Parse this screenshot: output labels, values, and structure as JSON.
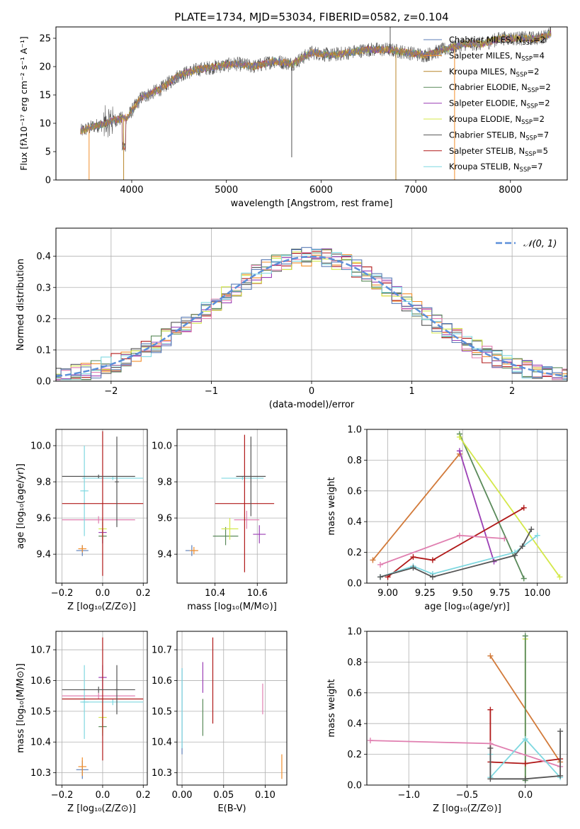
{
  "figure": {
    "title": "PLATE=1734, MJD=53034, FIBERID=0582, z=0.104"
  },
  "colors": {
    "chabrier_miles": "#5b7db7",
    "salpeter_miles": "#f28e2b",
    "kroupa_miles": "#b8852a",
    "chabrier_elodie": "#5a8a5a",
    "salpeter_elodie": "#9b3fb5",
    "kroupa_elodie": "#d4e84a",
    "chabrier_stelib": "#555555",
    "salpeter_stelib": "#b01818",
    "kroupa_stelib": "#7fd8e0",
    "pink": "#e07fb0",
    "orange_line": "#d27a3a",
    "normal_curve": "#5b8fd9",
    "grid": "#b0b0b0"
  },
  "chart_data": [
    {
      "id": "spectrum",
      "type": "line",
      "title": "PLATE=1734, MJD=53034, FIBERID=0582, z=0.104",
      "xlabel": "wavelength [Angstrom, rest frame]",
      "ylabel": "Flux [fλ10⁻¹⁷ erg cm⁻² s⁻¹ A⁻¹]",
      "xlim": [
        3200,
        8600
      ],
      "ylim": [
        0,
        27
      ],
      "xticks": [
        "4000",
        "5000",
        "6000",
        "7000",
        "8000"
      ],
      "yticks": [
        "0",
        "5",
        "10",
        "15",
        "20",
        "25"
      ],
      "grid": false,
      "legend_position": "right",
      "legend": [
        {
          "label": "Chabrier MILES, N",
          "sub": "SSP",
          "n": "=2",
          "color_key": "chabrier_miles"
        },
        {
          "label": "Salpeter MILES, N",
          "sub": "SSP",
          "n": "=4",
          "color_key": "salpeter_miles"
        },
        {
          "label": "Kroupa MILES, N",
          "sub": "SSP",
          "n": "=2",
          "color_key": "kroupa_miles"
        },
        {
          "label": "Chabrier ELODIE, N",
          "sub": "SSP",
          "n": "=2",
          "color_key": "chabrier_elodie"
        },
        {
          "label": "Salpeter ELODIE, N",
          "sub": "SSP",
          "n": "=2",
          "color_key": "salpeter_elodie"
        },
        {
          "label": "Kroupa ELODIE, N",
          "sub": "SSP",
          "n": "=2",
          "color_key": "kroupa_elodie"
        },
        {
          "label": "Chabrier STELIB, N",
          "sub": "SSP",
          "n": "=7",
          "color_key": "chabrier_stelib"
        },
        {
          "label": "Salpeter STELIB, N",
          "sub": "SSP",
          "n": "=5",
          "color_key": "salpeter_stelib"
        },
        {
          "label": "Kroupa STELIB, N",
          "sub": "SSP",
          "n": "=7",
          "color_key": "kroupa_stelib"
        }
      ],
      "continuum": [
        [
          3450,
          8.5
        ],
        [
          3600,
          9.5
        ],
        [
          3700,
          9.8
        ],
        [
          3800,
          10.5
        ],
        [
          3950,
          11
        ],
        [
          4100,
          14.5
        ],
        [
          4300,
          16
        ],
        [
          4500,
          18.5
        ],
        [
          4700,
          19.5
        ],
        [
          4900,
          20
        ],
        [
          5100,
          20.5
        ],
        [
          5300,
          20
        ],
        [
          5500,
          21
        ],
        [
          5700,
          20.5
        ],
        [
          5900,
          22.5
        ],
        [
          6100,
          22
        ],
        [
          6300,
          22.5
        ],
        [
          6500,
          23
        ],
        [
          6700,
          23
        ],
        [
          6900,
          22.5
        ],
        [
          7100,
          22
        ],
        [
          7300,
          23
        ],
        [
          7500,
          24
        ],
        [
          7700,
          24
        ],
        [
          7900,
          25
        ],
        [
          8100,
          25
        ],
        [
          8300,
          25
        ],
        [
          8450,
          26
        ]
      ]
    },
    {
      "id": "residuals",
      "type": "line",
      "xlabel": "(data-model)/error",
      "ylabel": "Normed distribution",
      "xlim": [
        -2.55,
        2.55
      ],
      "ylim": [
        0,
        0.49
      ],
      "xticks": [
        "−2",
        "−1",
        "0",
        "1",
        "2"
      ],
      "yticks": [
        "0.0",
        "0.1",
        "0.2",
        "0.3",
        "0.4"
      ],
      "grid": true,
      "legend": [
        {
          "label": "𝒩(0, 1)",
          "color_key": "normal_curve"
        }
      ],
      "legend_position": "top-right",
      "normal": {
        "mean": 0,
        "sigma": 1
      }
    },
    {
      "id": "age_vs_Z",
      "type": "scatter",
      "xlabel": "Z [log₁₀(Z/Z⊙)]",
      "ylabel": "age  [log₁₀(age/yr)]",
      "xlim": [
        -0.23,
        0.22
      ],
      "ylim": [
        9.24,
        10.09
      ],
      "xticks": [
        "−0.2",
        "0.0",
        "0.2"
      ],
      "yticks": [
        "9.4",
        "9.6",
        "9.8",
        "10.0"
      ],
      "grid": true,
      "errorbars": [
        {
          "x": -0.1,
          "y": 9.42,
          "xerr": 0.03,
          "yerr": 0.03,
          "color_key": "chabrier_miles"
        },
        {
          "x": -0.1,
          "y": 9.43,
          "xerr": 0.02,
          "yerr": 0.02,
          "color_key": "salpeter_miles"
        },
        {
          "x": 0.0,
          "y": 9.5,
          "xerr": 0.02,
          "yerr": 0.04,
          "color_key": "chabrier_elodie"
        },
        {
          "x": 0.0,
          "y": 9.52,
          "xerr": 0.02,
          "yerr": 0.06,
          "color_key": "salpeter_elodie"
        },
        {
          "x": 0.0,
          "y": 9.54,
          "xerr": 0.02,
          "yerr": 0.06,
          "color_key": "kroupa_elodie"
        },
        {
          "x": -0.02,
          "y": 9.59,
          "xerr": 0.18,
          "yerr": 0.02,
          "color_key": "pink"
        },
        {
          "x": -0.09,
          "y": 9.75,
          "xerr": 0.02,
          "yerr": 0.25,
          "color_key": "kroupa_stelib"
        },
        {
          "x": 0.05,
          "y": 9.82,
          "xerr": 0.15,
          "yerr": 0.01,
          "color_key": "kroupa_stelib"
        },
        {
          "x": 0.0,
          "y": 9.68,
          "xerr": 0.2,
          "yerr": 0.4,
          "color_key": "salpeter_stelib"
        },
        {
          "x": -0.02,
          "y": 9.83,
          "xerr": 0.18,
          "yerr": 0.01,
          "color_key": "chabrier_stelib"
        },
        {
          "x": 0.07,
          "y": 9.8,
          "xerr": 0.01,
          "yerr": 0.25,
          "color_key": "chabrier_stelib"
        }
      ]
    },
    {
      "id": "age_vs_mass",
      "type": "scatter",
      "xlabel": "mass [log₁₀(M/M⊙)]",
      "ylabel": "",
      "xlim": [
        10.22,
        10.74
      ],
      "ylim": [
        9.24,
        10.09
      ],
      "xticks": [
        "10.4",
        "10.6"
      ],
      "yticks": [
        "9.4",
        "9.6",
        "9.8",
        "10.0"
      ],
      "grid": true,
      "errorbars": [
        {
          "x": 10.29,
          "y": 9.42,
          "xerr": 0.03,
          "yerr": 0.03,
          "color_key": "chabrier_miles"
        },
        {
          "x": 10.3,
          "y": 9.42,
          "xerr": 0.02,
          "yerr": 0.02,
          "color_key": "salpeter_miles"
        },
        {
          "x": 10.45,
          "y": 9.5,
          "xerr": 0.06,
          "yerr": 0.05,
          "color_key": "chabrier_elodie"
        },
        {
          "x": 10.61,
          "y": 9.51,
          "xerr": 0.03,
          "yerr": 0.05,
          "color_key": "salpeter_elodie"
        },
        {
          "x": 10.47,
          "y": 9.54,
          "xerr": 0.04,
          "yerr": 0.06,
          "color_key": "kroupa_elodie"
        },
        {
          "x": 10.55,
          "y": 9.59,
          "xerr": 0.06,
          "yerr": 0.05,
          "color_key": "pink"
        },
        {
          "x": 10.53,
          "y": 9.82,
          "xerr": 0.1,
          "yerr": 0.01,
          "color_key": "kroupa_stelib"
        },
        {
          "x": 10.54,
          "y": 9.68,
          "xerr": 0.14,
          "yerr": 0.38,
          "color_key": "salpeter_stelib"
        },
        {
          "x": 10.57,
          "y": 9.83,
          "xerr": 0.07,
          "yerr": 0.22,
          "color_key": "chabrier_stelib"
        }
      ]
    },
    {
      "id": "mass_weight_vs_age",
      "type": "line",
      "xlabel": "age  [log₁₀(age/yr)]",
      "ylabel": "mass weight",
      "xlim": [
        8.86,
        10.2
      ],
      "ylim": [
        0,
        1.0
      ],
      "xticks": [
        "9.00",
        "9.25",
        "9.50",
        "9.75",
        "10.00"
      ],
      "yticks": [
        "0.0",
        "0.2",
        "0.4",
        "0.6",
        "0.8",
        "1.0"
      ],
      "grid": true,
      "series": [
        {
          "color_key": "orange_line",
          "x": [
            8.9,
            9.48
          ],
          "y": [
            0.15,
            0.84
          ]
        },
        {
          "color_key": "salpeter_elodie",
          "x": [
            9.48,
            9.71
          ],
          "y": [
            0.86,
            0.14
          ]
        },
        {
          "color_key": "chabrier_elodie",
          "x": [
            9.48,
            9.91
          ],
          "y": [
            0.97,
            0.03
          ]
        },
        {
          "color_key": "kroupa_elodie",
          "x": [
            9.48,
            10.15
          ],
          "y": [
            0.95,
            0.04
          ]
        },
        {
          "color_key": "salpeter_stelib",
          "x": [
            9.0,
            9.17,
            9.3,
            9.91
          ],
          "y": [
            0.04,
            0.17,
            0.15,
            0.49
          ]
        },
        {
          "color_key": "pink",
          "x": [
            8.95,
            9.48,
            9.78
          ],
          "y": [
            0.12,
            0.31,
            0.29
          ]
        },
        {
          "color_key": "kroupa_stelib",
          "x": [
            8.95,
            9.17,
            9.3,
            9.85,
            10.0
          ],
          "y": [
            0.04,
            0.11,
            0.06,
            0.2,
            0.31
          ]
        },
        {
          "color_key": "chabrier_stelib",
          "x": [
            8.95,
            9.17,
            9.3,
            9.85,
            9.9,
            9.96
          ],
          "y": [
            0.04,
            0.1,
            0.04,
            0.18,
            0.24,
            0.35
          ]
        }
      ]
    },
    {
      "id": "mass_vs_Z",
      "type": "scatter",
      "xlabel": "Z [log₁₀(Z/Z⊙)]",
      "ylabel": "mass [log₁₀(M/M⊙)]",
      "xlim": [
        -0.23,
        0.22
      ],
      "ylim": [
        10.26,
        10.76
      ],
      "xticks": [
        "−0.2",
        "0.0",
        "0.2"
      ],
      "yticks": [
        "10.3",
        "10.4",
        "10.5",
        "10.6",
        "10.7"
      ],
      "grid": true,
      "errorbars": [
        {
          "x": -0.1,
          "y": 10.31,
          "xerr": 0.03,
          "yerr": 0.03,
          "color_key": "chabrier_miles"
        },
        {
          "x": -0.1,
          "y": 10.32,
          "xerr": 0.02,
          "yerr": 0.03,
          "color_key": "salpeter_miles"
        },
        {
          "x": 0.0,
          "y": 10.45,
          "xerr": 0.02,
          "yerr": 0.03,
          "color_key": "chabrier_elodie"
        },
        {
          "x": 0.0,
          "y": 10.61,
          "xerr": 0.02,
          "yerr": 0.04,
          "color_key": "salpeter_elodie"
        },
        {
          "x": 0.0,
          "y": 10.48,
          "xerr": 0.02,
          "yerr": 0.05,
          "color_key": "kroupa_elodie"
        },
        {
          "x": -0.02,
          "y": 10.55,
          "xerr": 0.18,
          "yerr": 0.01,
          "color_key": "pink"
        },
        {
          "x": -0.09,
          "y": 10.53,
          "xerr": 0.02,
          "yerr": 0.12,
          "color_key": "kroupa_stelib"
        },
        {
          "x": 0.05,
          "y": 10.53,
          "xerr": 0.15,
          "yerr": 0.01,
          "color_key": "kroupa_stelib"
        },
        {
          "x": 0.0,
          "y": 10.54,
          "xerr": 0.2,
          "yerr": 0.2,
          "color_key": "salpeter_stelib"
        },
        {
          "x": -0.02,
          "y": 10.57,
          "xerr": 0.18,
          "yerr": 0.01,
          "color_key": "chabrier_stelib"
        },
        {
          "x": 0.07,
          "y": 10.57,
          "xerr": 0.01,
          "yerr": 0.08,
          "color_key": "chabrier_stelib"
        }
      ]
    },
    {
      "id": "mass_vs_ebv",
      "type": "scatter",
      "xlabel": "E(B-V)",
      "ylabel": "",
      "xlim": [
        -0.006,
        0.126
      ],
      "ylim": [
        10.26,
        10.76
      ],
      "xticks": [
        "0.00",
        "0.05",
        "0.10"
      ],
      "yticks": [
        "10.3",
        "10.4",
        "10.5",
        "10.6",
        "10.7"
      ],
      "grid": true,
      "errorbars": [
        {
          "x": 0.0,
          "y": 10.5,
          "xerr": 0.0,
          "yerr": 0.14,
          "color_key": "chabrier_miles"
        },
        {
          "x": 0.0,
          "y": 10.51,
          "xerr": 0.0,
          "yerr": 0.13,
          "color_key": "kroupa_stelib"
        },
        {
          "x": 0.025,
          "y": 10.61,
          "xerr": 0.0,
          "yerr": 0.05,
          "color_key": "salpeter_elodie"
        },
        {
          "x": 0.025,
          "y": 10.48,
          "xerr": 0.0,
          "yerr": 0.06,
          "color_key": "chabrier_elodie"
        },
        {
          "x": 0.037,
          "y": 10.6,
          "xerr": 0.0,
          "yerr": 0.14,
          "color_key": "salpeter_stelib"
        },
        {
          "x": 0.097,
          "y": 10.54,
          "xerr": 0.0,
          "yerr": 0.05,
          "color_key": "pink"
        },
        {
          "x": 0.12,
          "y": 10.32,
          "xerr": 0.0,
          "yerr": 0.04,
          "color_key": "salpeter_miles"
        }
      ]
    },
    {
      "id": "mass_weight_vs_Z",
      "type": "line",
      "xlabel": "Z [log₁₀(Z/Z⊙)]",
      "ylabel": "mass weight",
      "xlim": [
        -1.36,
        0.36
      ],
      "ylim": [
        0,
        1.0
      ],
      "xticks": [
        "−1.0",
        "−0.5",
        "0.0"
      ],
      "yticks": [
        "0.0",
        "0.2",
        "0.4",
        "0.6",
        "0.8",
        "1.0"
      ],
      "grid": true,
      "series": [
        {
          "color_key": "orange_line",
          "x": [
            -0.3,
            0.3
          ],
          "y": [
            0.84,
            0.15
          ]
        },
        {
          "color_key": "kroupa_elodie",
          "x": [
            0.0,
            0.0
          ],
          "y": [
            0.95,
            0.04
          ]
        },
        {
          "color_key": "chabrier_elodie",
          "x": [
            0.0,
            0.0
          ],
          "y": [
            0.97,
            0.03
          ]
        },
        {
          "color_key": "salpeter_stelib",
          "x": [
            -0.3,
            -0.3,
            0.0,
            0.3
          ],
          "y": [
            0.49,
            0.15,
            0.14,
            0.17
          ]
        },
        {
          "color_key": "pink",
          "x": [
            -1.33,
            -0.3,
            0.3
          ],
          "y": [
            0.29,
            0.27,
            0.12
          ]
        },
        {
          "color_key": "kroupa_stelib",
          "x": [
            -0.3,
            -0.3,
            0.0,
            0.3
          ],
          "y": [
            0.2,
            0.05,
            0.3,
            0.05
          ]
        },
        {
          "color_key": "chabrier_stelib",
          "x": [
            -0.3,
            -0.3,
            0.0,
            0.3,
            0.3
          ],
          "y": [
            0.24,
            0.04,
            0.04,
            0.06,
            0.35
          ]
        }
      ]
    }
  ]
}
